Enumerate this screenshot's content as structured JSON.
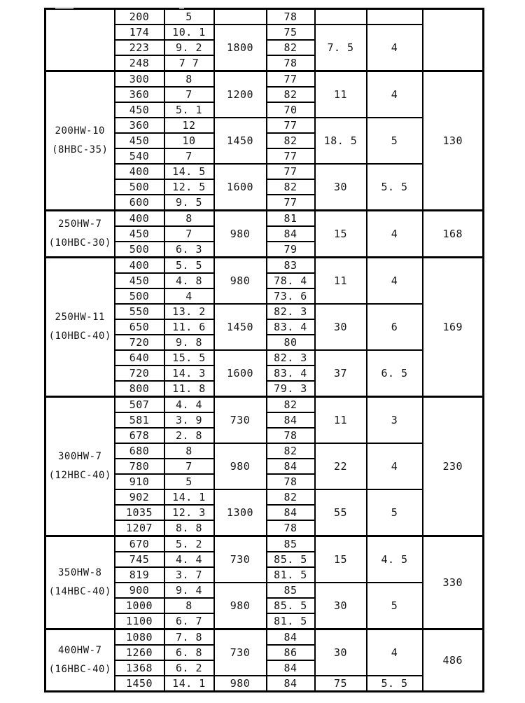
{
  "page": {
    "background": "#ffffff",
    "line_color": "#000000"
  },
  "table": {
    "sections": [
      {
        "model_line1": "",
        "model_line2": "",
        "weight": "",
        "groups": [
          {
            "speed": "",
            "power": "",
            "aux": "",
            "rows": [
              {
                "flow": "200",
                "head": "5",
                "eff": "78"
              }
            ]
          },
          {
            "speed": "1800",
            "power": "7. 5",
            "aux": "4",
            "rows": [
              {
                "flow": "174",
                "head": "10. 1",
                "eff": "75"
              },
              {
                "flow": "223",
                "head": "9. 2",
                "eff": "82"
              },
              {
                "flow": "248",
                "head": "7 7",
                "eff": "78"
              }
            ]
          }
        ]
      },
      {
        "model_line1": "200HW-10",
        "model_line2": "(8HBC-35)",
        "weight": "130",
        "groups": [
          {
            "speed": "1200",
            "power": "11",
            "aux": "4",
            "rows": [
              {
                "flow": "300",
                "head": "8",
                "eff": "77"
              },
              {
                "flow": "360",
                "head": "7",
                "eff": "82"
              },
              {
                "flow": "450",
                "head": "5. 1",
                "eff": "70"
              }
            ]
          },
          {
            "speed": "1450",
            "power": "18. 5",
            "aux": "5",
            "rows": [
              {
                "flow": "360",
                "head": "12",
                "eff": "77"
              },
              {
                "flow": "450",
                "head": "10",
                "eff": "82"
              },
              {
                "flow": "540",
                "head": "7",
                "eff": "77"
              }
            ]
          },
          {
            "speed": "1600",
            "power": "30",
            "aux": "5. 5",
            "rows": [
              {
                "flow": "400",
                "head": "14. 5",
                "eff": "77"
              },
              {
                "flow": "500",
                "head": "12. 5",
                "eff": "82"
              },
              {
                "flow": "600",
                "head": "9. 5",
                "eff": "77"
              }
            ]
          }
        ]
      },
      {
        "model_line1": "250HW-7",
        "model_line2": "(10HBC-30)",
        "weight": "168",
        "groups": [
          {
            "speed": "980",
            "power": "15",
            "aux": "4",
            "rows": [
              {
                "flow": "400",
                "head": "8",
                "eff": "81"
              },
              {
                "flow": "450",
                "head": "7",
                "eff": "84"
              },
              {
                "flow": "500",
                "head": "6. 3",
                "eff": "79"
              }
            ]
          }
        ]
      },
      {
        "model_line1": "250HW-11",
        "model_line2": "(10HBC-40)",
        "weight": "169",
        "groups": [
          {
            "speed": "980",
            "power": "11",
            "aux": "4",
            "rows": [
              {
                "flow": "400",
                "head": "5. 5",
                "eff": "83"
              },
              {
                "flow": "450",
                "head": "4. 8",
                "eff": "78. 4"
              },
              {
                "flow": "500",
                "head": "4",
                "eff": "73. 6"
              }
            ]
          },
          {
            "speed": "1450",
            "power": "30",
            "aux": "6",
            "rows": [
              {
                "flow": "550",
                "head": "13. 2",
                "eff": "82. 3"
              },
              {
                "flow": "650",
                "head": "11. 6",
                "eff": "83. 4"
              },
              {
                "flow": "720",
                "head": "9. 8",
                "eff": "80"
              }
            ]
          },
          {
            "speed": "1600",
            "power": "37",
            "aux": "6. 5",
            "rows": [
              {
                "flow": "640",
                "head": "15. 5",
                "eff": "82. 3"
              },
              {
                "flow": "720",
                "head": "14. 3",
                "eff": "83. 4"
              },
              {
                "flow": "800",
                "head": "11. 8",
                "eff": "79. 3"
              }
            ]
          }
        ]
      },
      {
        "model_line1": "300HW-7",
        "model_line2": "(12HBC-40)",
        "weight": "230",
        "groups": [
          {
            "speed": "730",
            "power": "11",
            "aux": "3",
            "rows": [
              {
                "flow": "507",
                "head": "4. 4",
                "eff": "82"
              },
              {
                "flow": "581",
                "head": "3. 9",
                "eff": "84"
              },
              {
                "flow": "678",
                "head": "2. 8",
                "eff": "78"
              }
            ]
          },
          {
            "speed": "980",
            "power": "22",
            "aux": "4",
            "rows": [
              {
                "flow": "680",
                "head": "8",
                "eff": "82"
              },
              {
                "flow": "780",
                "head": "7",
                "eff": "84"
              },
              {
                "flow": "910",
                "head": "5",
                "eff": "78"
              }
            ]
          },
          {
            "speed": "1300",
            "power": "55",
            "aux": "5",
            "rows": [
              {
                "flow": "902",
                "head": "14. 1",
                "eff": "82"
              },
              {
                "flow": "1035",
                "head": "12. 3",
                "eff": "84"
              },
              {
                "flow": "1207",
                "head": "8. 8",
                "eff": "78"
              }
            ]
          }
        ]
      },
      {
        "model_line1": "350HW-8",
        "model_line2": "(14HBC-40)",
        "weight": "330",
        "groups": [
          {
            "speed": "730",
            "power": "15",
            "aux": "4. 5",
            "rows": [
              {
                "flow": "670",
                "head": "5. 2",
                "eff": "85"
              },
              {
                "flow": "745",
                "head": "4. 4",
                "eff": "85. 5"
              },
              {
                "flow": "819",
                "head": "3. 7",
                "eff": "81. 5"
              }
            ]
          },
          {
            "speed": "980",
            "power": "30",
            "aux": "5",
            "rows": [
              {
                "flow": "900",
                "head": "9. 4",
                "eff": "85"
              },
              {
                "flow": "1000",
                "head": "8",
                "eff": "85. 5"
              },
              {
                "flow": "1100",
                "head": "6. 7",
                "eff": "81. 5"
              }
            ]
          }
        ]
      },
      {
        "model_line1": "400HW-7",
        "model_line2": "(16HBC-40)",
        "weight": "486",
        "groups": [
          {
            "speed": "730",
            "power": "30",
            "aux": "4",
            "rows": [
              {
                "flow": "1080",
                "head": "7. 8",
                "eff": "84"
              },
              {
                "flow": "1260",
                "head": "6. 8",
                "eff": "86"
              },
              {
                "flow": "1368",
                "head": "6. 2",
                "eff": "84"
              }
            ]
          },
          {
            "speed": "980",
            "power": "75",
            "aux": "5. 5",
            "rows": [
              {
                "flow": "1450",
                "head": "14. 1",
                "eff": "84"
              }
            ]
          }
        ]
      }
    ]
  }
}
